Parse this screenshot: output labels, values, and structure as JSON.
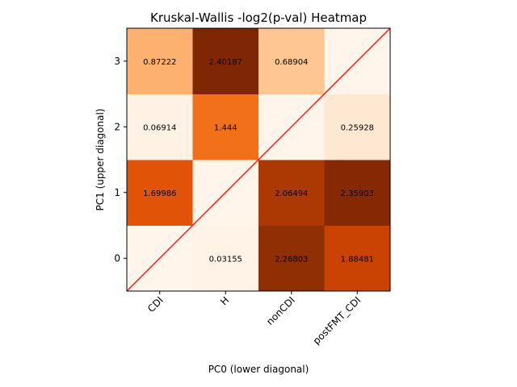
{
  "chart_data": {
    "type": "heatmap",
    "title": "Kruskal-Wallis -log2(p-val) Heatmap",
    "xlabel": "PC0 (lower diagonal)",
    "ylabel": "PC1 (upper diagonal)",
    "x_categories": [
      "CDI",
      "H",
      "nonCDI",
      "postFMT_CDI"
    ],
    "y_categories": [
      "0",
      "1",
      "2",
      "3"
    ],
    "colormap": "Oranges",
    "color_range": [
      0,
      2.40187
    ],
    "cells": [
      {
        "x": "CDI",
        "y": "0",
        "value": 0,
        "label": ""
      },
      {
        "x": "H",
        "y": "0",
        "value": 0.03155,
        "label": "0.03155"
      },
      {
        "x": "nonCDI",
        "y": "0",
        "value": 2.26803,
        "label": "2.26803"
      },
      {
        "x": "postFMT_CDI",
        "y": "0",
        "value": 1.88481,
        "label": "1.88481"
      },
      {
        "x": "CDI",
        "y": "1",
        "value": 1.69986,
        "label": "1.69986"
      },
      {
        "x": "H",
        "y": "1",
        "value": 0,
        "label": ""
      },
      {
        "x": "nonCDI",
        "y": "1",
        "value": 2.06494,
        "label": "2.06494"
      },
      {
        "x": "postFMT_CDI",
        "y": "1",
        "value": 2.35903,
        "label": "2.35903"
      },
      {
        "x": "CDI",
        "y": "2",
        "value": 0.06914,
        "label": "0.06914"
      },
      {
        "x": "H",
        "y": "2",
        "value": 1.444,
        "label": "1.444"
      },
      {
        "x": "nonCDI",
        "y": "2",
        "value": 0,
        "label": ""
      },
      {
        "x": "postFMT_CDI",
        "y": "2",
        "value": 0.25928,
        "label": "0.25928"
      },
      {
        "x": "CDI",
        "y": "3",
        "value": 0.87222,
        "label": "0.87222"
      },
      {
        "x": "H",
        "y": "3",
        "value": 2.40187,
        "label": "2.40187"
      },
      {
        "x": "nonCDI",
        "y": "3",
        "value": 0.68904,
        "label": "0.68904"
      },
      {
        "x": "postFMT_CDI",
        "y": "3",
        "value": 0,
        "label": ""
      }
    ],
    "diagonal_line_color": "#e8221b",
    "grid": false,
    "legend": "none"
  }
}
